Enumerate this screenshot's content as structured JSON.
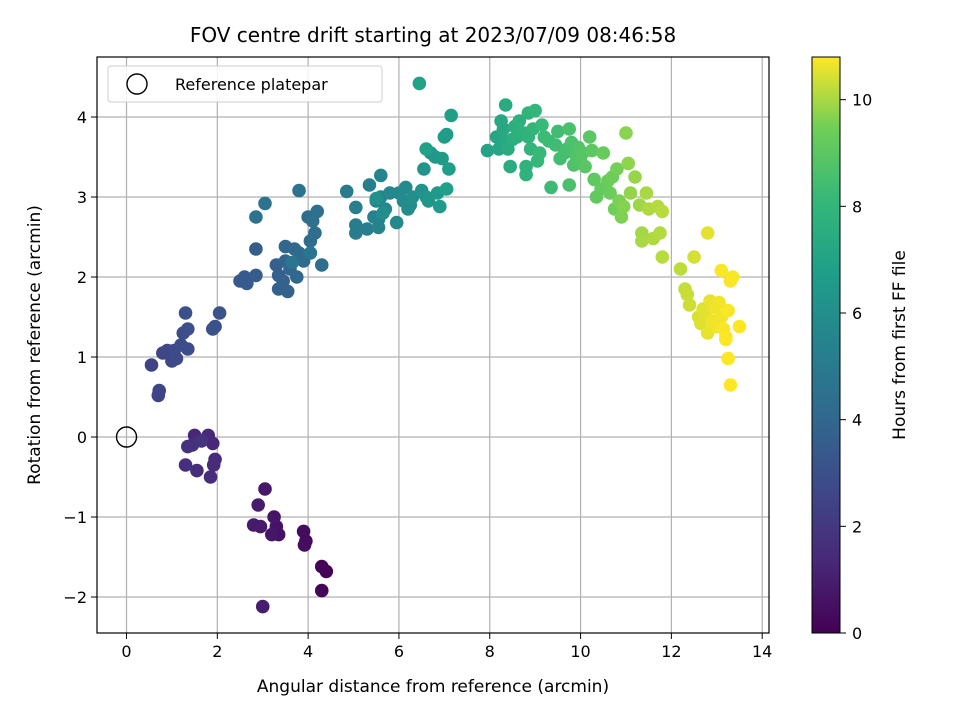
{
  "chart_data": {
    "type": "scatter",
    "title": "FOV centre drift starting at 2023/07/09 08:46:58",
    "xlabel": "Angular distance from reference (arcmin)",
    "ylabel": "Rotation from reference (arcmin)",
    "xlim": [
      -0.65,
      14.15
    ],
    "ylim": [
      -2.45,
      4.75
    ],
    "xticks": [
      0,
      2,
      4,
      6,
      8,
      10,
      12,
      14
    ],
    "yticks": [
      -2,
      -1,
      0,
      1,
      2,
      3,
      4
    ],
    "grid": true,
    "legend": {
      "position": "top-left",
      "entries": [
        "Reference platepar"
      ]
    },
    "reference_point": {
      "x": 0,
      "y": 0,
      "label": "Reference platepar"
    },
    "colorbar": {
      "label": "Hours from first FF file",
      "colormap": "viridis",
      "range": [
        0,
        10.8
      ],
      "ticks": [
        0,
        2,
        4,
        6,
        8,
        10
      ]
    },
    "points": [
      [
        4.4,
        -1.68,
        0.05
      ],
      [
        4.3,
        -1.62,
        0.1
      ],
      [
        4.3,
        -1.92,
        0.15
      ],
      [
        3.95,
        -1.3,
        0.3
      ],
      [
        3.9,
        -1.18,
        0.35
      ],
      [
        3.92,
        -1.35,
        0.4
      ],
      [
        3.35,
        -1.22,
        0.55
      ],
      [
        3.3,
        -1.12,
        0.6
      ],
      [
        3.25,
        -1.0,
        0.7
      ],
      [
        3.2,
        -1.22,
        0.75
      ],
      [
        3.05,
        -0.65,
        0.8
      ],
      [
        2.95,
        -1.12,
        0.85
      ],
      [
        2.8,
        -1.1,
        0.9
      ],
      [
        2.9,
        -0.85,
        0.95
      ],
      [
        3.0,
        -2.12,
        1.0
      ],
      [
        1.5,
        0.02,
        1.3
      ],
      [
        1.8,
        0.02,
        1.35
      ],
      [
        1.9,
        -0.08,
        1.4
      ],
      [
        1.95,
        -0.28,
        1.45
      ],
      [
        1.92,
        -0.35,
        1.5
      ],
      [
        1.85,
        -0.5,
        1.55
      ],
      [
        1.55,
        -0.42,
        1.6
      ],
      [
        1.3,
        -0.35,
        1.65
      ],
      [
        1.45,
        -0.1,
        1.7
      ],
      [
        1.35,
        -0.12,
        1.75
      ],
      [
        1.65,
        -0.05,
        1.8
      ],
      [
        0.55,
        0.9,
        2.4
      ],
      [
        0.7,
        0.52,
        2.45
      ],
      [
        0.72,
        0.58,
        2.5
      ],
      [
        0.8,
        1.05,
        2.55
      ],
      [
        0.9,
        1.08,
        2.6
      ],
      [
        1.0,
        0.95,
        2.65
      ],
      [
        1.05,
        1.08,
        2.7
      ],
      [
        1.1,
        0.98,
        2.75
      ],
      [
        1.2,
        1.15,
        2.8
      ],
      [
        1.35,
        1.1,
        2.85
      ],
      [
        1.25,
        1.3,
        2.9
      ],
      [
        1.35,
        1.35,
        2.95
      ],
      [
        1.3,
        1.55,
        3.0
      ],
      [
        1.9,
        1.35,
        3.05
      ],
      [
        1.95,
        1.38,
        3.1
      ],
      [
        2.05,
        1.55,
        3.15
      ],
      [
        2.5,
        1.95,
        3.4
      ],
      [
        2.6,
        2.0,
        3.45
      ],
      [
        2.65,
        1.92,
        3.5
      ],
      [
        2.85,
        2.02,
        3.55
      ],
      [
        2.85,
        2.35,
        3.6
      ],
      [
        3.3,
        2.15,
        3.65
      ],
      [
        3.35,
        2.02,
        3.7
      ],
      [
        3.45,
        1.95,
        3.75
      ],
      [
        3.55,
        1.82,
        3.8
      ],
      [
        3.35,
        1.85,
        3.85
      ],
      [
        3.5,
        2.2,
        3.9
      ],
      [
        3.6,
        2.1,
        3.95
      ],
      [
        3.5,
        2.38,
        4.0
      ],
      [
        3.7,
        2.35,
        4.05
      ],
      [
        3.75,
        2.0,
        4.1
      ],
      [
        3.8,
        2.3,
        4.15
      ],
      [
        3.9,
        2.2,
        4.2
      ],
      [
        4.05,
        2.45,
        4.25
      ],
      [
        4.0,
        2.75,
        4.3
      ],
      [
        4.15,
        2.55,
        4.35
      ],
      [
        4.3,
        2.15,
        4.4
      ],
      [
        4.1,
        2.7,
        4.45
      ],
      [
        4.2,
        2.82,
        4.5
      ],
      [
        2.85,
        2.75,
        4.55
      ],
      [
        3.05,
        2.92,
        4.6
      ],
      [
        3.8,
        3.08,
        4.65
      ],
      [
        4.05,
        2.3,
        4.7
      ],
      [
        3.65,
        2.18,
        4.75
      ],
      [
        4.85,
        3.07,
        5.0
      ],
      [
        5.05,
        2.55,
        5.05
      ],
      [
        5.05,
        2.65,
        5.1
      ],
      [
        5.05,
        2.87,
        5.15
      ],
      [
        5.3,
        2.6,
        5.2
      ],
      [
        5.35,
        3.15,
        5.25
      ],
      [
        5.45,
        2.75,
        5.3
      ],
      [
        5.5,
        2.95,
        5.35
      ],
      [
        5.55,
        2.72,
        5.4
      ],
      [
        5.55,
        2.62,
        5.45
      ],
      [
        5.6,
        3.0,
        5.5
      ],
      [
        5.6,
        3.27,
        5.55
      ],
      [
        5.7,
        2.85,
        5.6
      ],
      [
        5.8,
        3.05,
        5.65
      ],
      [
        5.95,
        2.68,
        5.7
      ],
      [
        6.0,
        3.05,
        5.75
      ],
      [
        6.1,
        2.95,
        5.8
      ],
      [
        6.15,
        3.12,
        5.85
      ],
      [
        6.2,
        2.85,
        5.9
      ],
      [
        6.25,
        2.9,
        5.95
      ],
      [
        6.3,
        3.0,
        6.0
      ],
      [
        5.65,
        2.8,
        6.05
      ],
      [
        5.5,
        2.98,
        6.1
      ],
      [
        6.5,
        3.08,
        6.2
      ],
      [
        6.55,
        3.35,
        6.25
      ],
      [
        6.6,
        3.0,
        6.3
      ],
      [
        6.65,
        2.95,
        6.35
      ],
      [
        6.7,
        3.55,
        6.4
      ],
      [
        6.8,
        3.5,
        6.45
      ],
      [
        6.85,
        3.05,
        6.5
      ],
      [
        6.9,
        2.88,
        6.55
      ],
      [
        6.95,
        3.48,
        6.6
      ],
      [
        7.0,
        3.75,
        6.65
      ],
      [
        7.05,
        3.78,
        6.7
      ],
      [
        7.1,
        3.35,
        6.75
      ],
      [
        7.15,
        4.02,
        6.8
      ],
      [
        7.05,
        3.1,
        6.85
      ],
      [
        6.6,
        3.6,
        6.9
      ],
      [
        6.45,
        4.42,
        6.95
      ],
      [
        7.95,
        3.58,
        7.1
      ],
      [
        8.15,
        3.75,
        7.15
      ],
      [
        8.2,
        3.6,
        7.2
      ],
      [
        8.25,
        3.95,
        7.25
      ],
      [
        8.3,
        3.85,
        7.3
      ],
      [
        8.35,
        3.7,
        7.35
      ],
      [
        8.35,
        4.15,
        7.4
      ],
      [
        8.4,
        3.6,
        7.45
      ],
      [
        8.45,
        3.38,
        7.5
      ],
      [
        8.5,
        3.72,
        7.55
      ],
      [
        8.55,
        3.88,
        7.6
      ],
      [
        8.6,
        3.75,
        7.65
      ],
      [
        8.65,
        3.95,
        7.7
      ],
      [
        8.75,
        3.8,
        7.75
      ],
      [
        8.8,
        3.28,
        7.8
      ],
      [
        8.8,
        3.38,
        7.85
      ],
      [
        8.85,
        4.05,
        7.9
      ],
      [
        8.9,
        3.6,
        7.95
      ],
      [
        8.95,
        3.85,
        8.0
      ],
      [
        9.0,
        4.08,
        8.05
      ],
      [
        9.05,
        3.45,
        8.1
      ],
      [
        9.1,
        3.55,
        8.15
      ],
      [
        9.15,
        3.9,
        8.2
      ],
      [
        9.2,
        3.75,
        8.25
      ],
      [
        9.35,
        3.12,
        8.3
      ],
      [
        9.45,
        3.65,
        8.35
      ],
      [
        9.5,
        3.82,
        8.4
      ],
      [
        9.55,
        3.48,
        8.45
      ],
      [
        9.65,
        3.55,
        8.5
      ],
      [
        9.7,
        3.6,
        8.55
      ],
      [
        9.75,
        3.85,
        8.6
      ],
      [
        9.8,
        3.68,
        8.65
      ],
      [
        9.85,
        3.4,
        8.7
      ],
      [
        9.9,
        3.52,
        8.75
      ],
      [
        9.95,
        3.62,
        8.8
      ],
      [
        10.0,
        3.45,
        8.85
      ],
      [
        10.05,
        3.55,
        8.9
      ],
      [
        10.1,
        3.38,
        8.95
      ],
      [
        10.2,
        3.75,
        9.0
      ],
      [
        10.25,
        3.58,
        9.05
      ],
      [
        10.3,
        3.22,
        9.1
      ],
      [
        10.35,
        3.0,
        9.15
      ],
      [
        10.45,
        3.1,
        9.2
      ],
      [
        10.5,
        3.55,
        9.25
      ],
      [
        10.6,
        3.2,
        9.3
      ],
      [
        10.65,
        3.05,
        9.35
      ],
      [
        10.7,
        3.25,
        9.4
      ],
      [
        10.75,
        2.85,
        9.45
      ],
      [
        10.8,
        3.35,
        9.5
      ],
      [
        10.85,
        2.95,
        9.55
      ],
      [
        10.9,
        2.75,
        9.6
      ],
      [
        10.95,
        2.88,
        9.65
      ],
      [
        11.0,
        3.8,
        9.7
      ],
      [
        11.05,
        3.42,
        9.75
      ],
      [
        11.1,
        3.05,
        9.8
      ],
      [
        11.2,
        3.25,
        9.85
      ],
      [
        11.3,
        2.9,
        9.9
      ],
      [
        11.35,
        2.55,
        9.95
      ],
      [
        11.35,
        2.45,
        10.0
      ],
      [
        11.45,
        3.05,
        10.0
      ],
      [
        11.5,
        2.85,
        10.05
      ],
      [
        11.6,
        2.48,
        10.05
      ],
      [
        11.7,
        2.88,
        10.1
      ],
      [
        11.75,
        2.55,
        10.1
      ],
      [
        11.8,
        2.25,
        10.15
      ],
      [
        11.8,
        2.82,
        10.15
      ],
      [
        9.75,
        3.15,
        8.6
      ],
      [
        8.85,
        3.75,
        7.9
      ],
      [
        9.3,
        3.7,
        8.3
      ],
      [
        12.2,
        2.1,
        10.2
      ],
      [
        12.3,
        1.85,
        10.25
      ],
      [
        12.35,
        1.78,
        10.3
      ],
      [
        12.4,
        1.65,
        10.35
      ],
      [
        12.5,
        2.25,
        10.4
      ],
      [
        12.6,
        1.5,
        10.45
      ],
      [
        12.65,
        1.42,
        10.5
      ],
      [
        12.7,
        1.6,
        10.5
      ],
      [
        12.75,
        1.55,
        10.55
      ],
      [
        12.8,
        2.55,
        10.55
      ],
      [
        12.8,
        1.3,
        10.6
      ],
      [
        12.85,
        1.7,
        10.6
      ],
      [
        12.9,
        1.45,
        10.65
      ],
      [
        12.95,
        1.62,
        10.65
      ],
      [
        13.0,
        1.38,
        10.7
      ],
      [
        13.05,
        1.68,
        10.7
      ],
      [
        13.1,
        1.5,
        10.7
      ],
      [
        13.15,
        1.35,
        10.75
      ],
      [
        13.2,
        1.25,
        10.75
      ],
      [
        13.25,
        1.58,
        10.75
      ],
      [
        13.1,
        2.08,
        10.75
      ],
      [
        13.3,
        1.95,
        10.75
      ],
      [
        13.35,
        2.0,
        10.75
      ],
      [
        13.25,
        0.98,
        10.8
      ],
      [
        13.3,
        0.65,
        10.8
      ],
      [
        13.5,
        1.38,
        10.8
      ],
      [
        13.2,
        1.22,
        10.8
      ]
    ]
  }
}
